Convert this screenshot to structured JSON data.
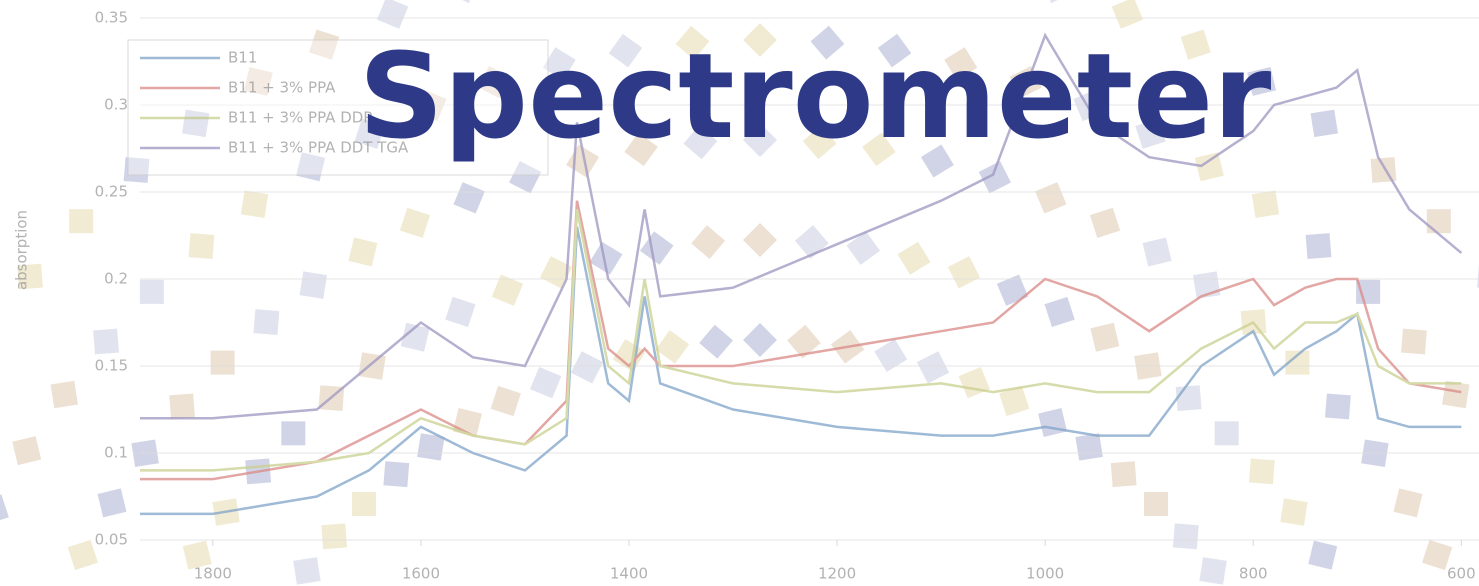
{
  "chart_data": {
    "type": "line",
    "title": "Spectrometer",
    "ylabel": "absorption",
    "x": [
      1870,
      1800,
      1700,
      1650,
      1600,
      1550,
      1500,
      1460,
      1450,
      1420,
      1400,
      1385,
      1370,
      1300,
      1200,
      1100,
      1050,
      1000,
      950,
      900,
      850,
      800,
      780,
      750,
      720,
      700,
      680,
      650,
      600
    ],
    "series": [
      {
        "name": "B11",
        "color": "#7fa3c8",
        "values": [
          0.065,
          0.065,
          0.075,
          0.09,
          0.115,
          0.1,
          0.09,
          0.11,
          0.23,
          0.14,
          0.13,
          0.19,
          0.14,
          0.125,
          0.115,
          0.11,
          0.11,
          0.115,
          0.11,
          0.11,
          0.15,
          0.17,
          0.145,
          0.16,
          0.17,
          0.18,
          0.12,
          0.115,
          0.115
        ]
      },
      {
        "name": "B11 + 3% PPA",
        "color": "#d98a86",
        "values": [
          0.085,
          0.085,
          0.095,
          0.11,
          0.125,
          0.11,
          0.105,
          0.13,
          0.245,
          0.16,
          0.15,
          0.16,
          0.15,
          0.15,
          0.16,
          0.17,
          0.175,
          0.2,
          0.19,
          0.17,
          0.19,
          0.2,
          0.185,
          0.195,
          0.2,
          0.2,
          0.16,
          0.14,
          0.135
        ]
      },
      {
        "name": "B11 + 3% PPA DDP",
        "color": "#c9cf8e",
        "values": [
          0.09,
          0.09,
          0.095,
          0.1,
          0.12,
          0.11,
          0.105,
          0.12,
          0.24,
          0.15,
          0.14,
          0.2,
          0.15,
          0.14,
          0.135,
          0.14,
          0.135,
          0.14,
          0.135,
          0.135,
          0.16,
          0.175,
          0.16,
          0.175,
          0.175,
          0.18,
          0.15,
          0.14,
          0.14
        ]
      },
      {
        "name": "B11 + 3% PPA DDT TGA",
        "color": "#9d96c0",
        "values": [
          0.12,
          0.12,
          0.125,
          0.15,
          0.175,
          0.155,
          0.15,
          0.2,
          0.29,
          0.2,
          0.185,
          0.24,
          0.19,
          0.195,
          0.22,
          0.245,
          0.26,
          0.34,
          0.29,
          0.27,
          0.265,
          0.285,
          0.3,
          0.305,
          0.31,
          0.32,
          0.27,
          0.24,
          0.215
        ]
      }
    ],
    "xlim": [
      1870,
      583
    ],
    "xticks": [
      1800,
      1600,
      1400,
      1200,
      1000,
      800,
      600
    ],
    "ylim": [
      0.05,
      0.35
    ],
    "yticks": [
      0.05,
      0.1,
      0.15,
      0.2,
      0.25,
      0.3,
      0.35
    ],
    "grid": true,
    "legend": "upper left"
  }
}
